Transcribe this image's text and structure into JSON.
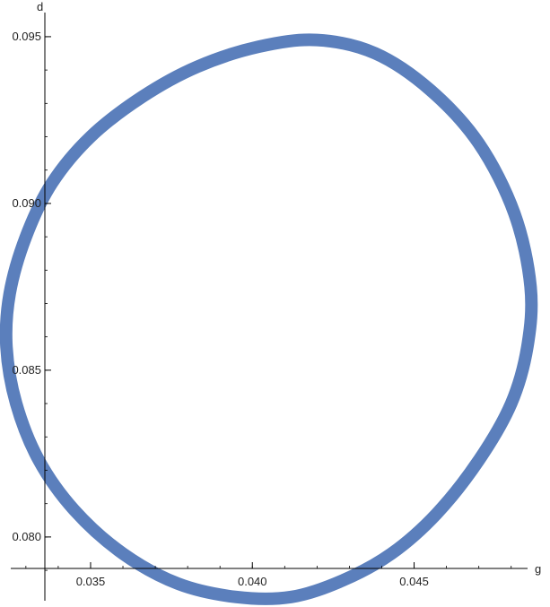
{
  "chart_data": {
    "type": "line",
    "title": "",
    "xlabel": "g",
    "ylabel": "d",
    "xlim": [
      0.0322,
      0.0492
    ],
    "ylim": [
      0.0779,
      0.0961
    ],
    "grid": false,
    "x_ticks": [
      {
        "value": 0.035,
        "label": "0.035"
      },
      {
        "value": 0.04,
        "label": "0.040"
      },
      {
        "value": 0.045,
        "label": "0.045"
      }
    ],
    "y_ticks": [
      {
        "value": 0.08,
        "label": "0.080"
      },
      {
        "value": 0.085,
        "label": "0.085"
      },
      {
        "value": 0.09,
        "label": "0.090"
      },
      {
        "value": 0.095,
        "label": "0.095"
      }
    ],
    "line_color": "#5b7fbc",
    "series": [
      {
        "x": [
          0.042,
          0.0438,
          0.0455,
          0.047,
          0.0481,
          0.0486,
          0.0485,
          0.048,
          0.047,
          0.0457,
          0.0443,
          0.0428,
          0.0412,
          0.0395,
          0.0377,
          0.036,
          0.0345,
          0.0334,
          0.0327,
          0.0324,
          0.0325,
          0.033,
          0.0338,
          0.035,
          0.0366,
          0.0383,
          0.0402,
          0.042
        ],
        "y": [
          0.0949,
          0.0945,
          0.0934,
          0.0918,
          0.0897,
          0.0875,
          0.0857,
          0.084,
          0.0823,
          0.0807,
          0.0795,
          0.0787,
          0.0782,
          0.0782,
          0.0786,
          0.0795,
          0.0808,
          0.0823,
          0.084,
          0.0857,
          0.0873,
          0.089,
          0.0906,
          0.092,
          0.0932,
          0.0941,
          0.0947,
          0.0949
        ]
      }
    ]
  }
}
